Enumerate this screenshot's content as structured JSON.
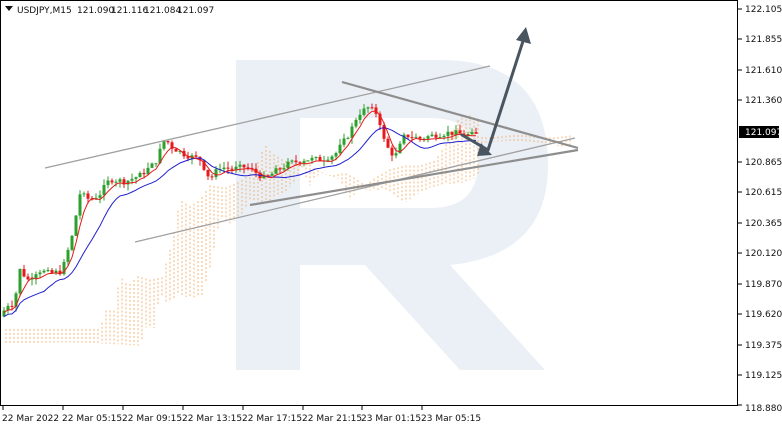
{
  "header": {
    "symbol": "USDJPY,M15",
    "open": "121.090",
    "high": "121.116",
    "low": "121.084",
    "close": "121.097"
  },
  "price_axis": {
    "ticks": [
      "122.105",
      "121.855",
      "121.610",
      "121.360",
      "121.097",
      "120.865",
      "120.615",
      "120.365",
      "120.120",
      "119.870",
      "119.620",
      "119.375",
      "119.125",
      "118.880"
    ],
    "current": "121.097"
  },
  "time_axis": {
    "ticks": [
      "22 Mar 2022",
      "22 Mar 05:15",
      "22 Mar 09:15",
      "22 Mar 13:15",
      "22 Mar 17:15",
      "22 Mar 21:15",
      "23 Mar 01:15",
      "23 Mar 05:15"
    ]
  },
  "colors": {
    "bull_candle": "#2ca02c",
    "bear_candle": "#e41a1c",
    "tenkan_line": "#e41a1c",
    "kijun_line": "#1f1fd0",
    "cloud": "#f2a65a",
    "trendline": "#999999",
    "arrow": "#4a5560",
    "watermark": "#dbe3ef"
  },
  "chart_data": {
    "type": "line",
    "title": "USDJPY,M15",
    "ylim": [
      118.88,
      122.105
    ],
    "x": [
      "22 Mar 2022",
      "22 Mar 05:15",
      "22 Mar 09:15",
      "22 Mar 13:15",
      "22 Mar 17:15",
      "22 Mar 21:15",
      "23 Mar 01:15",
      "23 Mar 05:15"
    ],
    "series": [
      {
        "values": [
          119.65,
          119.95,
          120.65,
          120.85,
          120.8,
          120.95,
          121.25,
          121.1
        ]
      },
      {
        "values": [
          119.55,
          119.9,
          120.45,
          120.8,
          120.75,
          120.9,
          121.1,
          121.08
        ]
      },
      {
        "values": [
          119.45,
          119.75,
          120.35,
          120.65,
          120.7,
          120.85,
          121.05,
          121.07
        ]
      }
    ]
  }
}
